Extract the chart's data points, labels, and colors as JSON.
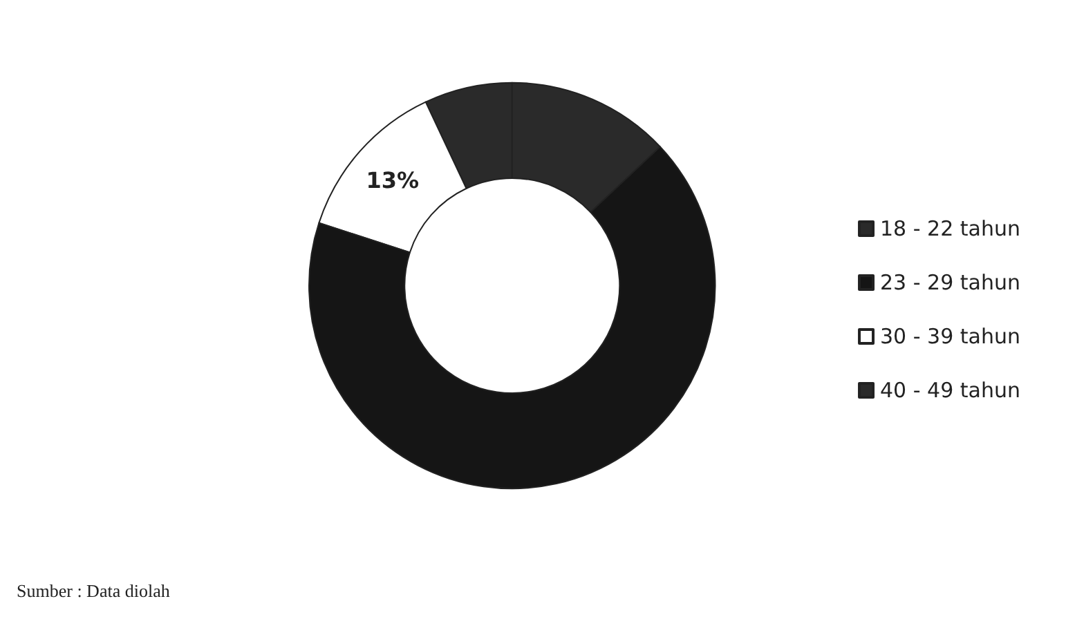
{
  "chart_data": {
    "type": "donut",
    "categories": [
      "18 - 22 tahun",
      "23 - 29 tahun",
      "30 - 39 tahun",
      "40 - 49 tahun"
    ],
    "values": [
      13,
      67,
      13,
      7
    ],
    "colors": [
      "#2a2a2a",
      "#151515",
      "#ffffff",
      "#2a2a2a"
    ],
    "value_labels": [
      null,
      null,
      "13%",
      null
    ],
    "legend": "right",
    "annotations": [
      "Sumber : Data diolah"
    ]
  }
}
